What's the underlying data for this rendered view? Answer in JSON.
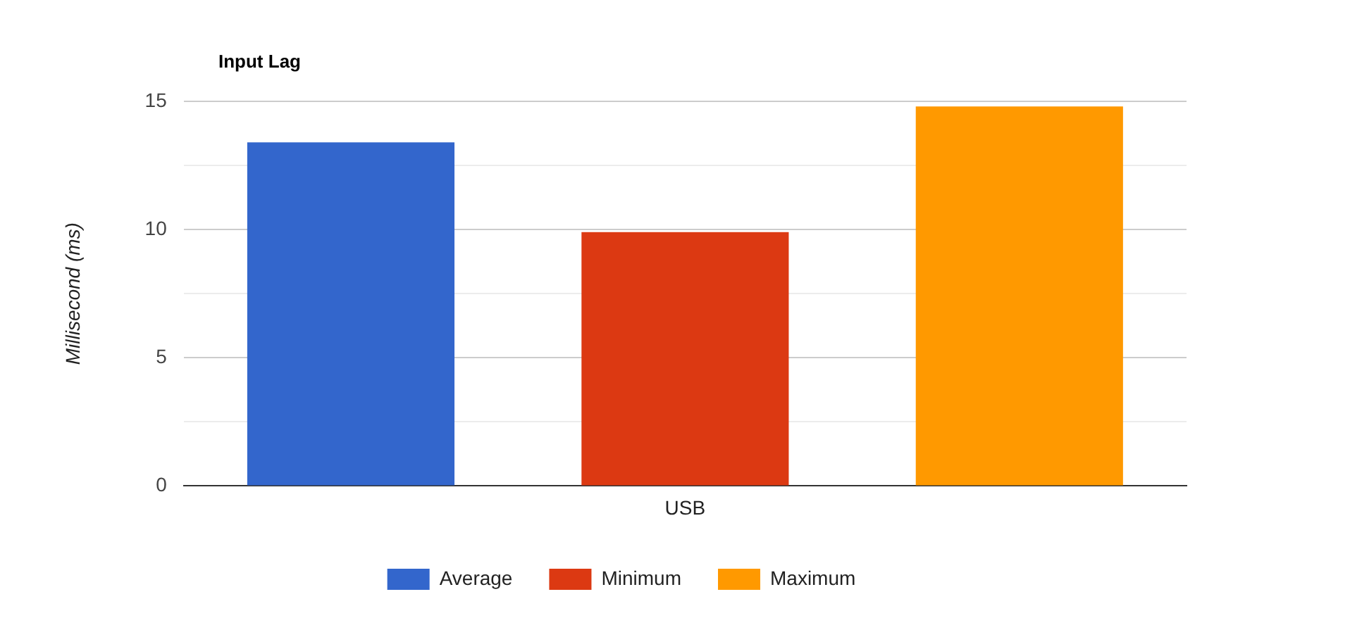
{
  "chart_data": {
    "type": "bar",
    "title": "Input Lag",
    "ylabel": "Millisecond (ms)",
    "categories": [
      "USB"
    ],
    "series": [
      {
        "name": "Average",
        "color": "#3366cc",
        "values": [
          13.4
        ]
      },
      {
        "name": "Minimum",
        "color": "#dc3912",
        "values": [
          9.9
        ]
      },
      {
        "name": "Maximum",
        "color": "#ff9900",
        "values": [
          14.8
        ]
      }
    ],
    "ylim": [
      0,
      15
    ],
    "yticks": [
      0,
      {
        "value": 2.5,
        "label": null
      },
      5,
      {
        "value": 7.5,
        "label": null
      },
      10,
      {
        "value": 12.5,
        "label": null
      },
      15
    ],
    "grid": "y",
    "legend": "bottom"
  }
}
